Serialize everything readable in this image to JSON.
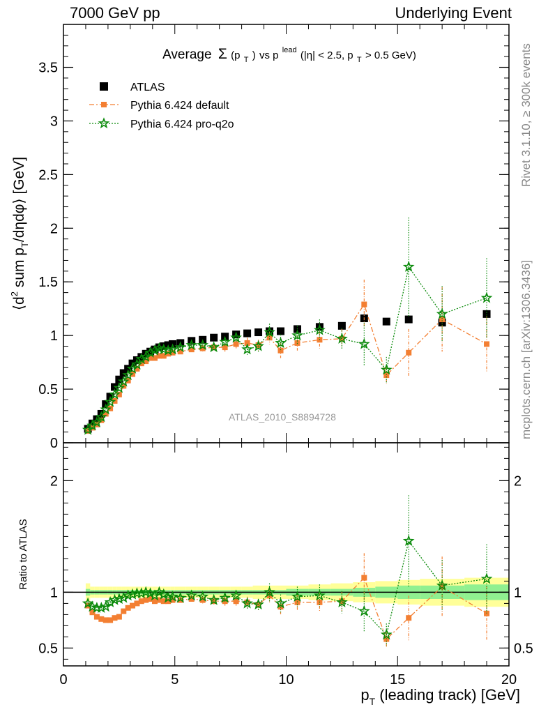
{
  "header": {
    "left": "7000 GeV pp",
    "right": "Underlying Event"
  },
  "side_texts": {
    "rivet": "Rivet 3.1.10, ≥ 300k events",
    "mcplots": "mcplots.cern.ch [arXiv:1306.3436]"
  },
  "watermark": "ATLAS_2010_S8894728",
  "colors": {
    "atlas": "#000000",
    "pythia_default": "#f37f32",
    "pythia_proq2o": "#0a8a0a",
    "band_inner": "#90f090",
    "band_outer": "#ffff99"
  },
  "chart_data": [
    {
      "type": "scatter",
      "title_parts": {
        "avg": "Average",
        "sigma": "Σ",
        "pt": "(p",
        "t_sub": "T",
        "close": ")",
        "vs": " vs p",
        "lead_sup": "lead",
        "range": " (|η| < 2.5, p",
        "gt": " > 0.5 GeV)"
      },
      "ylabel_parts": {
        "a": "⟨d",
        "sup": "2",
        "b": " sum p",
        "sub": "T",
        "c": "/dηdφ⟩ [GeV]"
      },
      "xlim": [
        0,
        20
      ],
      "ylim": [
        0,
        3.9
      ],
      "yticks": [
        0,
        0.5,
        1,
        1.5,
        2,
        2.5,
        3,
        3.5
      ],
      "ytick_labels": [
        "0",
        "0.5",
        "1",
        "1.5",
        "2",
        "2.5",
        "3",
        "3.5"
      ],
      "legend_position": "top-left",
      "series": [
        {
          "name": "ATLAS",
          "marker": "square",
          "x": [
            1.1,
            1.3,
            1.5,
            1.7,
            1.9,
            2.1,
            2.3,
            2.5,
            2.7,
            2.9,
            3.1,
            3.3,
            3.5,
            3.7,
            3.9,
            4.1,
            4.3,
            4.5,
            4.7,
            4.9,
            5.25,
            5.75,
            6.25,
            6.75,
            7.25,
            7.75,
            8.25,
            8.75,
            9.25,
            9.75,
            10.5,
            11.5,
            12.5,
            13.5,
            14.5,
            15.5,
            17,
            19
          ],
          "y": [
            0.13,
            0.18,
            0.22,
            0.27,
            0.36,
            0.43,
            0.52,
            0.59,
            0.65,
            0.69,
            0.74,
            0.77,
            0.8,
            0.83,
            0.85,
            0.87,
            0.89,
            0.9,
            0.91,
            0.92,
            0.93,
            0.95,
            0.96,
            0.98,
            0.99,
            1.01,
            1.02,
            1.03,
            1.04,
            1.04,
            1.06,
            1.08,
            1.09,
            1.16,
            1.13,
            1.15,
            1.12,
            1.2
          ]
        },
        {
          "name": "Pythia 6.424 default",
          "marker": "square-small",
          "x": [
            1.1,
            1.3,
            1.5,
            1.7,
            1.9,
            2.1,
            2.3,
            2.5,
            2.7,
            2.9,
            3.1,
            3.3,
            3.5,
            3.7,
            3.9,
            4.1,
            4.3,
            4.5,
            4.7,
            4.9,
            5.25,
            5.75,
            6.25,
            6.75,
            7.25,
            7.75,
            8.25,
            8.75,
            9.25,
            9.75,
            10.5,
            11.5,
            12.5,
            13.5,
            14.5,
            15.5,
            17,
            19
          ],
          "y": [
            0.11,
            0.14,
            0.17,
            0.21,
            0.27,
            0.32,
            0.39,
            0.45,
            0.53,
            0.58,
            0.64,
            0.69,
            0.74,
            0.76,
            0.79,
            0.79,
            0.81,
            0.81,
            0.83,
            0.84,
            0.85,
            0.87,
            0.88,
            0.89,
            0.89,
            0.92,
            0.93,
            0.91,
            0.98,
            0.86,
            0.93,
            0.96,
            0.97,
            1.29,
            0.63,
            0.84,
            1.15,
            0.92
          ],
          "err": [
            0.01,
            0.01,
            0.01,
            0.01,
            0.01,
            0.01,
            0.01,
            0.01,
            0.01,
            0.01,
            0.01,
            0.01,
            0.01,
            0.01,
            0.01,
            0.01,
            0.01,
            0.01,
            0.01,
            0.02,
            0.02,
            0.02,
            0.03,
            0.03,
            0.04,
            0.04,
            0.05,
            0.05,
            0.06,
            0.07,
            0.07,
            0.08,
            0.09,
            0.23,
            0.08,
            0.22,
            0.3,
            0.26
          ]
        },
        {
          "name": "Pythia 6.424 pro-q2o",
          "marker": "star",
          "x": [
            1.1,
            1.3,
            1.5,
            1.7,
            1.9,
            2.1,
            2.3,
            2.5,
            2.7,
            2.9,
            3.1,
            3.3,
            3.5,
            3.7,
            3.9,
            4.1,
            4.3,
            4.5,
            4.7,
            4.9,
            5.25,
            5.75,
            6.25,
            6.75,
            7.25,
            7.75,
            8.25,
            8.75,
            9.25,
            9.75,
            10.5,
            11.5,
            12.5,
            13.5,
            14.5,
            15.5,
            17,
            19
          ],
          "y": [
            0.12,
            0.16,
            0.19,
            0.24,
            0.31,
            0.38,
            0.45,
            0.51,
            0.57,
            0.63,
            0.69,
            0.73,
            0.78,
            0.8,
            0.84,
            0.86,
            0.88,
            0.87,
            0.86,
            0.87,
            0.89,
            0.91,
            0.91,
            0.89,
            0.94,
            0.98,
            0.87,
            0.9,
            1.03,
            0.93,
            1.0,
            1.05,
            0.97,
            0.92,
            0.68,
            1.64,
            1.2,
            1.35
          ],
          "err": [
            0.01,
            0.01,
            0.01,
            0.01,
            0.01,
            0.01,
            0.01,
            0.01,
            0.01,
            0.01,
            0.01,
            0.01,
            0.01,
            0.01,
            0.01,
            0.01,
            0.01,
            0.01,
            0.01,
            0.02,
            0.02,
            0.02,
            0.03,
            0.03,
            0.04,
            0.04,
            0.05,
            0.05,
            0.08,
            0.08,
            0.09,
            0.1,
            0.1,
            0.2,
            0.12,
            0.46,
            0.26,
            0.37
          ]
        }
      ]
    },
    {
      "type": "scatter",
      "ylabel": "Ratio to ATLAS",
      "xlabel_parts": {
        "a": "p",
        "sub": "T",
        "b": " (leading track) [GeV]"
      },
      "xlim": [
        0,
        20
      ],
      "ylim": [
        0.34,
        2.34
      ],
      "xticks": [
        0,
        5,
        10,
        15,
        20
      ],
      "xtick_labels": [
        "0",
        "5",
        "10",
        "15",
        "20"
      ],
      "yticks": [
        0.5,
        1,
        2
      ],
      "ytick_labels": [
        "0.5",
        "1",
        "2"
      ],
      "bands": {
        "x_edges": [
          1.0,
          1.2,
          1.4,
          1.6,
          1.8,
          2.0,
          2.2,
          2.4,
          2.6,
          2.8,
          3.0,
          3.2,
          3.4,
          3.6,
          3.8,
          4.0,
          4.2,
          4.4,
          4.6,
          4.8,
          5.0,
          5.5,
          6.0,
          6.5,
          7.0,
          7.5,
          8.0,
          8.5,
          9.0,
          9.5,
          10.0,
          11.0,
          12.0,
          13.0,
          14.0,
          15.0,
          16.0,
          18.0,
          20.0
        ],
        "inner": [
          0.03,
          0.02,
          0.02,
          0.02,
          0.02,
          0.02,
          0.02,
          0.02,
          0.02,
          0.02,
          0.02,
          0.02,
          0.02,
          0.02,
          0.02,
          0.02,
          0.02,
          0.02,
          0.02,
          0.02,
          0.02,
          0.02,
          0.02,
          0.02,
          0.02,
          0.02,
          0.02,
          0.02,
          0.02,
          0.02,
          0.03,
          0.03,
          0.03,
          0.04,
          0.05,
          0.06,
          0.06,
          0.07
        ],
        "outer": [
          0.08,
          0.05,
          0.05,
          0.05,
          0.05,
          0.05,
          0.05,
          0.05,
          0.05,
          0.05,
          0.05,
          0.05,
          0.05,
          0.05,
          0.05,
          0.05,
          0.05,
          0.05,
          0.05,
          0.05,
          0.05,
          0.05,
          0.05,
          0.05,
          0.05,
          0.05,
          0.05,
          0.06,
          0.06,
          0.06,
          0.06,
          0.07,
          0.08,
          0.09,
          0.1,
          0.11,
          0.12,
          0.13
        ]
      },
      "series": [
        {
          "name": "Pythia 6.424 default",
          "marker": "square-small",
          "x": [
            1.1,
            1.3,
            1.5,
            1.7,
            1.9,
            2.1,
            2.3,
            2.5,
            2.7,
            2.9,
            3.1,
            3.3,
            3.5,
            3.7,
            3.9,
            4.1,
            4.3,
            4.5,
            4.7,
            4.9,
            5.25,
            5.75,
            6.25,
            6.75,
            7.25,
            7.75,
            8.25,
            8.75,
            9.25,
            9.75,
            10.5,
            11.5,
            12.5,
            13.5,
            14.5,
            15.5,
            17,
            19
          ],
          "y": [
            0.88,
            0.82,
            0.78,
            0.76,
            0.75,
            0.75,
            0.77,
            0.78,
            0.83,
            0.86,
            0.88,
            0.9,
            0.92,
            0.93,
            0.94,
            0.92,
            0.93,
            0.92,
            0.92,
            0.93,
            0.93,
            0.94,
            0.93,
            0.92,
            0.92,
            0.92,
            0.91,
            0.89,
            0.97,
            0.87,
            0.91,
            0.91,
            0.92,
            1.13,
            0.58,
            0.77,
            1.05,
            0.81
          ],
          "err": [
            0.01,
            0.01,
            0.01,
            0.01,
            0.01,
            0.01,
            0.01,
            0.01,
            0.01,
            0.01,
            0.01,
            0.01,
            0.01,
            0.01,
            0.01,
            0.01,
            0.01,
            0.01,
            0.01,
            0.02,
            0.02,
            0.02,
            0.03,
            0.03,
            0.04,
            0.04,
            0.05,
            0.05,
            0.06,
            0.07,
            0.07,
            0.08,
            0.09,
            0.22,
            0.07,
            0.2,
            0.27,
            0.24
          ]
        },
        {
          "name": "Pythia 6.424 pro-q2o",
          "marker": "star",
          "x": [
            1.1,
            1.3,
            1.5,
            1.7,
            1.9,
            2.1,
            2.3,
            2.5,
            2.7,
            2.9,
            3.1,
            3.3,
            3.5,
            3.7,
            3.9,
            4.1,
            4.3,
            4.5,
            4.7,
            4.9,
            5.25,
            5.75,
            6.25,
            6.75,
            7.25,
            7.75,
            8.25,
            8.75,
            9.25,
            9.75,
            10.5,
            11.5,
            12.5,
            13.5,
            14.5,
            15.5,
            17,
            19
          ],
          "y": [
            0.9,
            0.87,
            0.86,
            0.86,
            0.87,
            0.91,
            0.93,
            0.94,
            0.95,
            0.97,
            0.98,
            0.99,
            0.99,
            1.0,
            0.99,
            0.97,
            1.0,
            0.98,
            0.95,
            0.96,
            0.95,
            0.97,
            0.96,
            0.93,
            0.95,
            0.97,
            0.9,
            0.89,
            1.0,
            0.9,
            0.96,
            0.97,
            0.91,
            0.83,
            0.62,
            1.46,
            1.06,
            1.12
          ],
          "err": [
            0.01,
            0.01,
            0.01,
            0.01,
            0.01,
            0.01,
            0.01,
            0.01,
            0.01,
            0.01,
            0.01,
            0.01,
            0.01,
            0.01,
            0.01,
            0.01,
            0.01,
            0.01,
            0.01,
            0.02,
            0.02,
            0.02,
            0.03,
            0.03,
            0.04,
            0.04,
            0.05,
            0.05,
            0.08,
            0.08,
            0.09,
            0.1,
            0.1,
            0.18,
            0.1,
            0.41,
            0.23,
            0.31
          ]
        }
      ]
    }
  ]
}
